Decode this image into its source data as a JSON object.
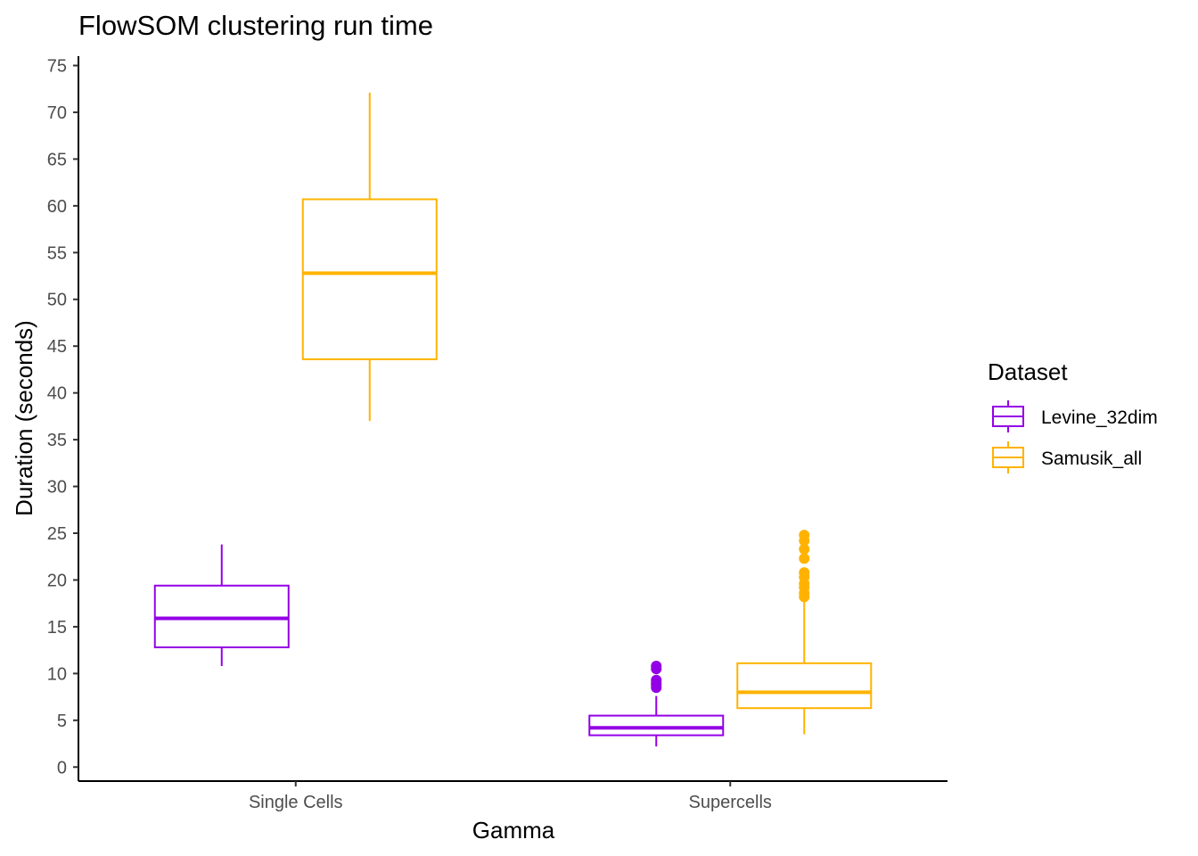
{
  "chart_data": {
    "type": "box",
    "title": "FlowSOM clustering run time",
    "xlabel": "Gamma",
    "ylabel": "Duration (seconds)",
    "categories": [
      "Single Cells",
      "Supercells"
    ],
    "ylim": [
      -1.5,
      76
    ],
    "yticks": [
      0,
      5,
      10,
      15,
      20,
      25,
      30,
      35,
      40,
      45,
      50,
      55,
      60,
      65,
      70,
      75
    ],
    "grid": false,
    "legend": {
      "title": "Dataset",
      "position": "right"
    },
    "series": [
      {
        "name": "Levine_32dim",
        "color": "#9400E6",
        "boxes": [
          {
            "category": "Single Cells",
            "whisker_low": 10.8,
            "q1": 12.8,
            "median": 15.9,
            "q3": 19.4,
            "whisker_high": 23.8,
            "outliers": []
          },
          {
            "category": "Supercells",
            "whisker_low": 2.2,
            "q1": 3.4,
            "median": 4.2,
            "q3": 5.5,
            "whisker_high": 7.6,
            "outliers": [
              8.5,
              8.8,
              9.0,
              9.3,
              10.5,
              10.8
            ]
          }
        ]
      },
      {
        "name": "Samusik_all",
        "color": "#FFB300",
        "boxes": [
          {
            "category": "Single Cells",
            "whisker_low": 37.0,
            "q1": 43.6,
            "median": 52.8,
            "q3": 60.7,
            "whisker_high": 72.1,
            "outliers": []
          },
          {
            "category": "Supercells",
            "whisker_low": 3.5,
            "q1": 6.3,
            "median": 8.0,
            "q3": 11.1,
            "whisker_high": 17.8,
            "outliers": [
              18.2,
              18.6,
              19.2,
              19.6,
              20.3,
              20.8,
              22.3,
              23.3,
              24.2,
              24.8
            ]
          }
        ]
      }
    ]
  }
}
